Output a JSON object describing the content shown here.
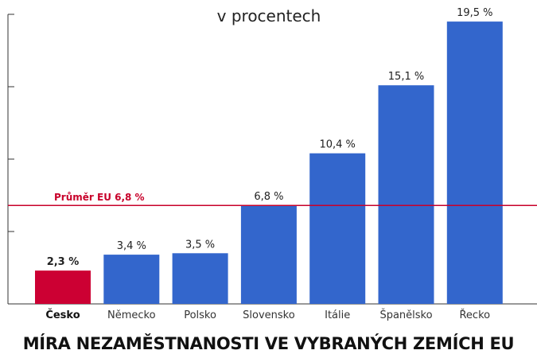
{
  "chart_data": {
    "type": "bar",
    "title": "MÍRA NEZAMĚSTNANOSTI VE VYBRANÝCH ZEMÍCH EU",
    "subtitle": "v procentech",
    "categories": [
      "Česko",
      "Německo",
      "Polsko",
      "Slovensko",
      "Itálie",
      "Španělsko",
      "Řecko"
    ],
    "values": [
      2.3,
      3.4,
      3.5,
      6.8,
      10.4,
      15.1,
      19.5
    ],
    "value_labels": [
      "2,3 %",
      "3,4 %",
      "3,5 %",
      "6,8 %",
      "10,4 %",
      "15,1 %",
      "19,5 %"
    ],
    "highlight_category": "Česko",
    "reference_line": {
      "value": 6.8,
      "label": "Průměr EU 6,8 %"
    },
    "xlabel": "",
    "ylabel": "",
    "ylim": [
      0,
      20
    ],
    "y_ticks": [
      0,
      5,
      10,
      15,
      20
    ],
    "grid": false,
    "colors": {
      "bar": "#3366cc",
      "highlight": "#cc0033",
      "reference_line": "#c8002a",
      "axis": "#333333"
    }
  }
}
